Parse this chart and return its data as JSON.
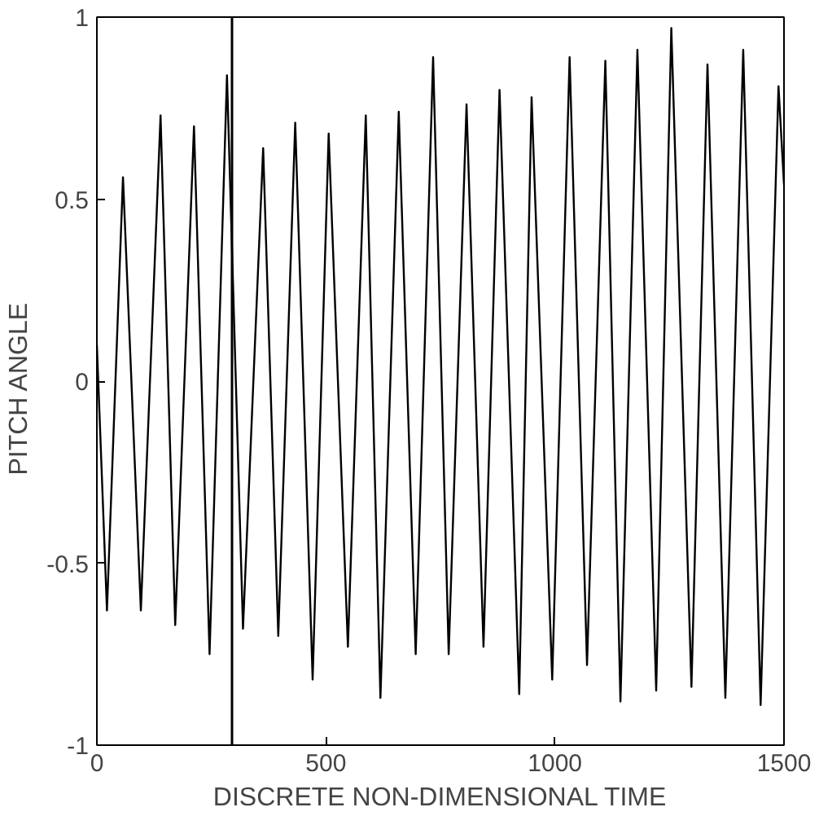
{
  "chart_data": {
    "type": "line",
    "xlabel": "DISCRETE NON-DIMENSIONAL TIME",
    "ylabel": "PITCH   ANGLE",
    "xlim": [
      0,
      1500
    ],
    "ylim": [
      -1,
      1
    ],
    "xticks": [
      0,
      500,
      1000,
      1500
    ],
    "yticks": [
      -1,
      -0.5,
      0,
      0.5,
      1
    ],
    "grid": false,
    "marker": "none",
    "line_style": "solid",
    "ref_lines": [
      {
        "axis": "x",
        "value": 295,
        "label": null,
        "color": "#000000"
      }
    ],
    "series": [
      {
        "color": "#000000",
        "x": [
          0,
          22,
          57,
          96,
          139,
          171,
          212,
          246,
          284,
          319,
          363,
          396,
          433,
          471,
          506,
          548,
          587,
          619,
          659,
          696,
          734,
          768,
          807,
          844,
          879,
          922,
          949,
          994,
          1032,
          1070,
          1110,
          1143,
          1180,
          1221,
          1254,
          1298,
          1333,
          1372,
          1411,
          1449,
          1488,
          1500
        ],
        "values": [
          0.1,
          -0.63,
          0.56,
          -0.63,
          0.73,
          -0.67,
          0.7,
          -0.75,
          0.84,
          -0.68,
          0.64,
          -0.7,
          0.71,
          -0.82,
          0.68,
          -0.73,
          0.73,
          -0.87,
          0.74,
          -0.75,
          0.89,
          -0.75,
          0.76,
          -0.73,
          0.8,
          -0.86,
          0.78,
          -0.82,
          0.89,
          -0.78,
          0.88,
          -0.88,
          0.91,
          -0.85,
          0.97,
          -0.84,
          0.87,
          -0.87,
          0.91,
          -0.89,
          0.81,
          0.54
        ]
      }
    ]
  }
}
